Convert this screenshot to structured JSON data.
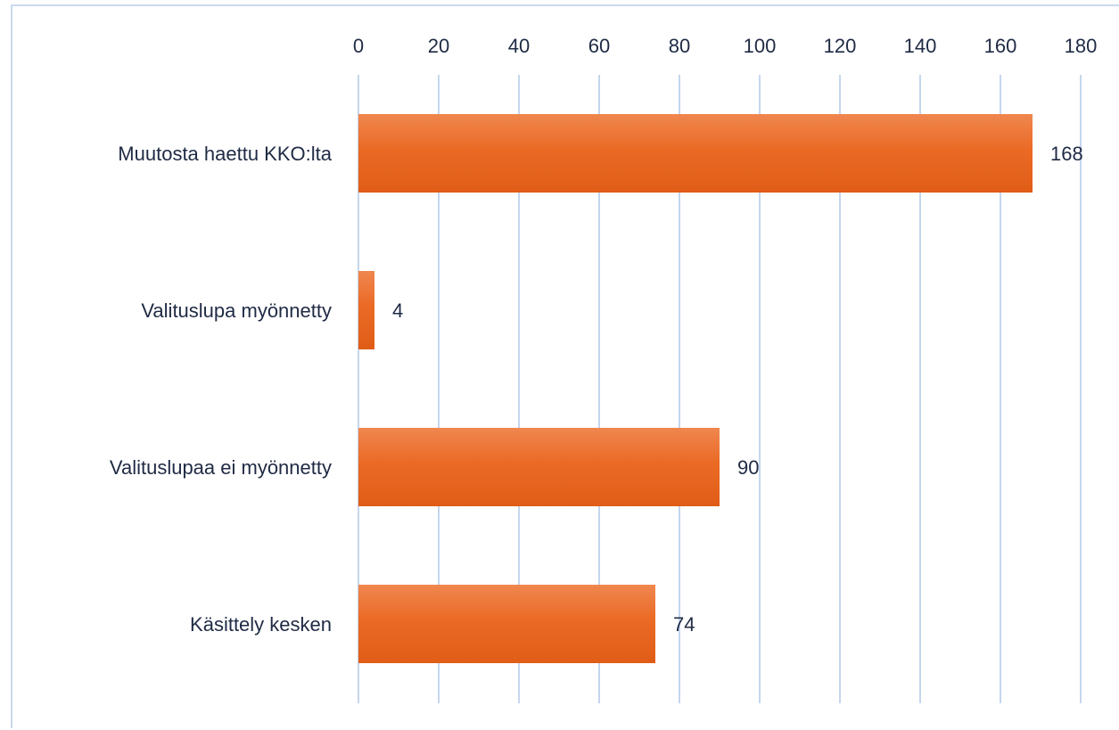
{
  "chart_data": {
    "type": "bar",
    "orientation": "horizontal",
    "title": "",
    "xlabel": "",
    "ylabel": "",
    "categories": [
      "Muutosta haettu KKO:lta",
      "Valituslupa myönnetty",
      "Valituslupaa ei myönnetty",
      "Käsittely kesken"
    ],
    "values": [
      168,
      4,
      90,
      74
    ],
    "data_labels": [
      "168",
      "4",
      "90",
      "74"
    ],
    "xlim": [
      0,
      180
    ],
    "ticks": [
      0,
      20,
      40,
      60,
      80,
      100,
      120,
      140,
      160,
      180
    ],
    "tick_labels": [
      "0",
      "20",
      "40",
      "60",
      "80",
      "100",
      "120",
      "140",
      "160",
      "180"
    ],
    "axis_position": "top",
    "grid": true,
    "legend": "none",
    "colors": {
      "bar_top": "#f0874f",
      "bar_mid": "#ea6a25",
      "bar_bottom": "#e05d17",
      "grid": "#c5d6ee",
      "text": "#1f2a44",
      "border": "#c9d9ee"
    }
  }
}
